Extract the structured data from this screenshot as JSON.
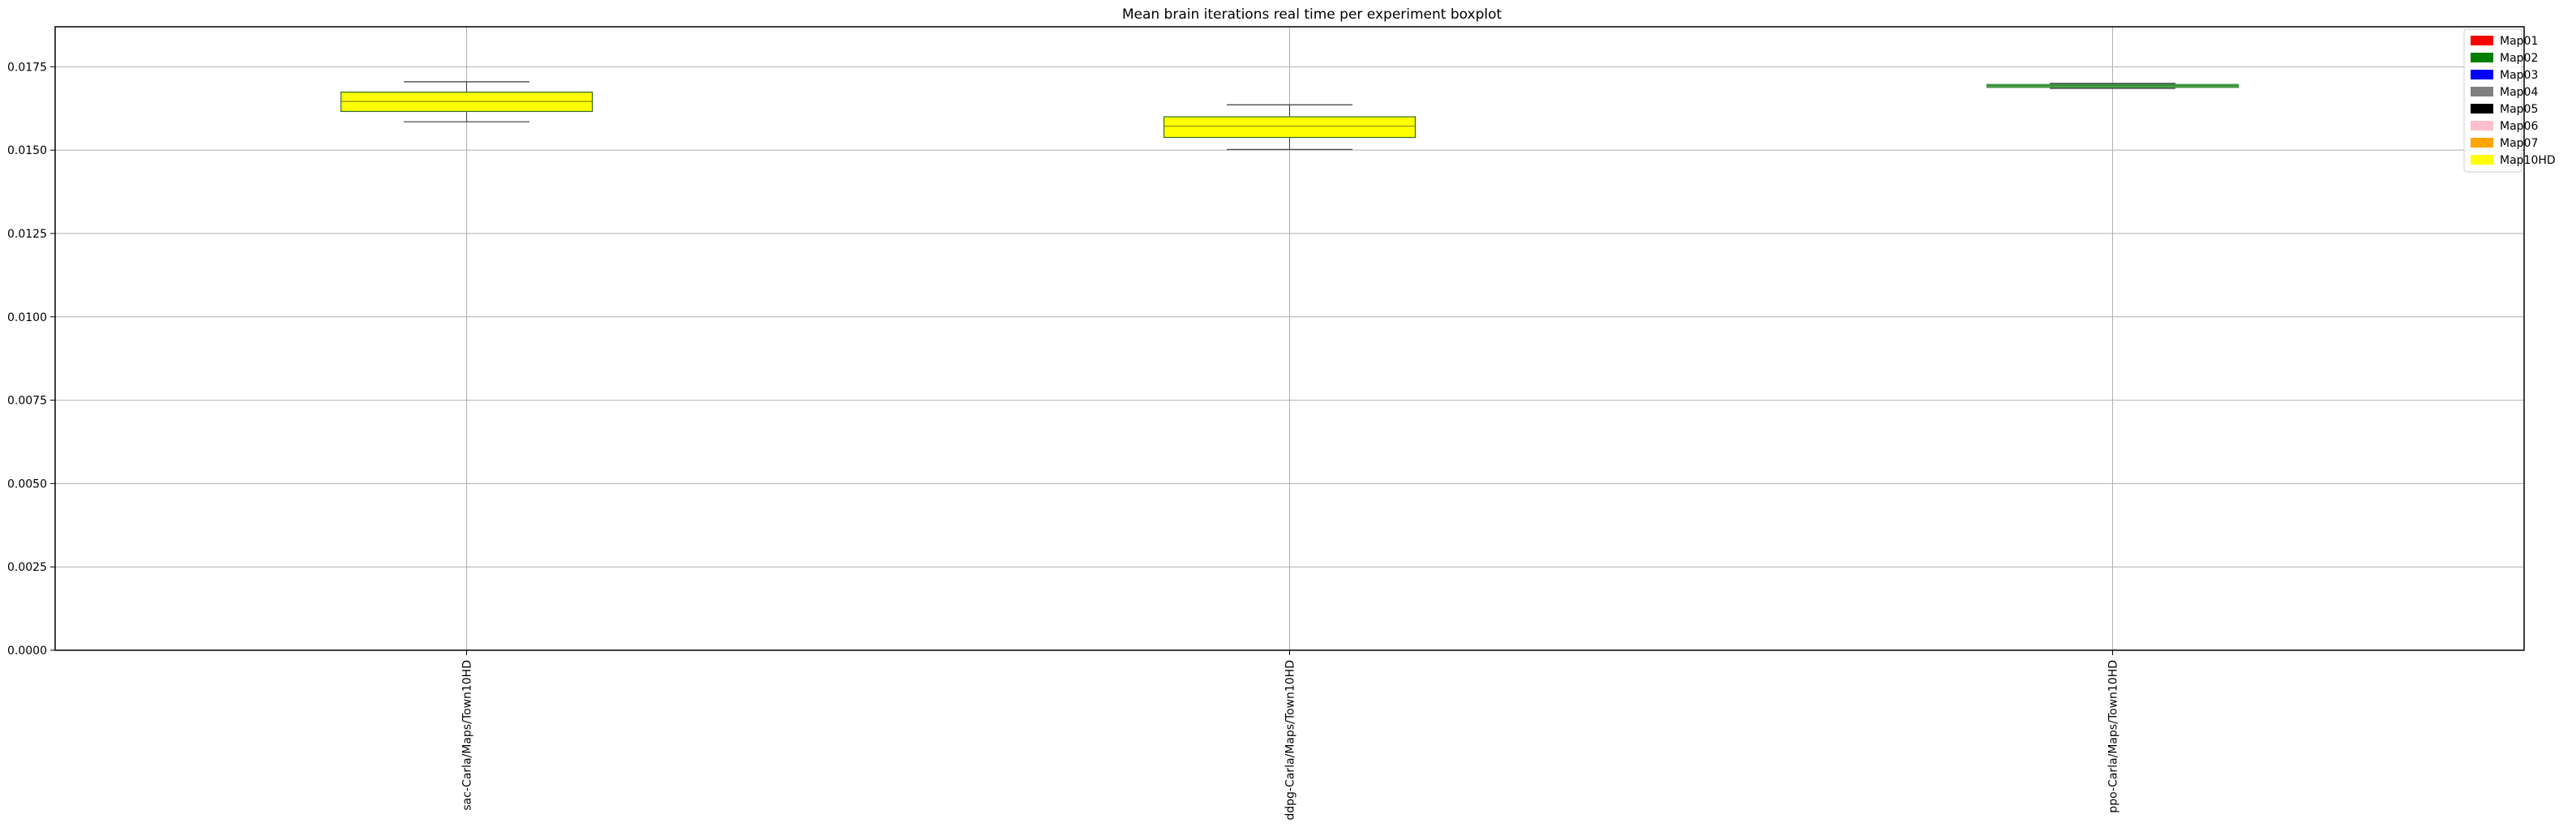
{
  "chart_data": {
    "type": "boxplot",
    "title": "Mean brain iterations real time per experiment boxplot",
    "xlabel": "",
    "ylabel": "",
    "ylim": [
      0,
      0.0187
    ],
    "grid": true,
    "legend_position": "top-right",
    "y_ticks": [
      "0.0000",
      "0.0025",
      "0.0050",
      "0.0075",
      "0.0100",
      "0.0125",
      "0.0150",
      "0.0175"
    ],
    "categories": [
      "sac-Carla/Maps/Town10HD",
      "ddpg-Carla/Maps/Town10HD",
      "ppo-Carla/Maps/Town10HD"
    ],
    "boxes": [
      {
        "category": "sac-Carla/Maps/Town10HD",
        "whisker_low": 0.01585,
        "q1": 0.01616,
        "median": 0.01646,
        "q3": 0.01674,
        "whisker_high": 0.01705,
        "color": "#ffff00"
      },
      {
        "category": "ddpg-Carla/Maps/Town10HD",
        "whisker_low": 0.01502,
        "q1": 0.01538,
        "median": 0.01572,
        "q3": 0.016,
        "whisker_high": 0.01636,
        "color": "#ffff00"
      },
      {
        "category": "ppo-Carla/Maps/Town10HD",
        "whisker_low": 0.01685,
        "q1": 0.01688,
        "median": 0.01693,
        "q3": 0.01697,
        "whisker_high": 0.017,
        "color": "#5cb85c"
      }
    ],
    "legend": [
      {
        "name": "Map01",
        "color": "#ff0000"
      },
      {
        "name": "Map02",
        "color": "#008000"
      },
      {
        "name": "Map03",
        "color": "#0000ff"
      },
      {
        "name": "Map04",
        "color": "#808080"
      },
      {
        "name": "Map05",
        "color": "#000000"
      },
      {
        "name": "Map06",
        "color": "#ffc0cb"
      },
      {
        "name": "Map07",
        "color": "#ffa500"
      },
      {
        "name": "Map10HD",
        "color": "#ffff00"
      }
    ]
  }
}
